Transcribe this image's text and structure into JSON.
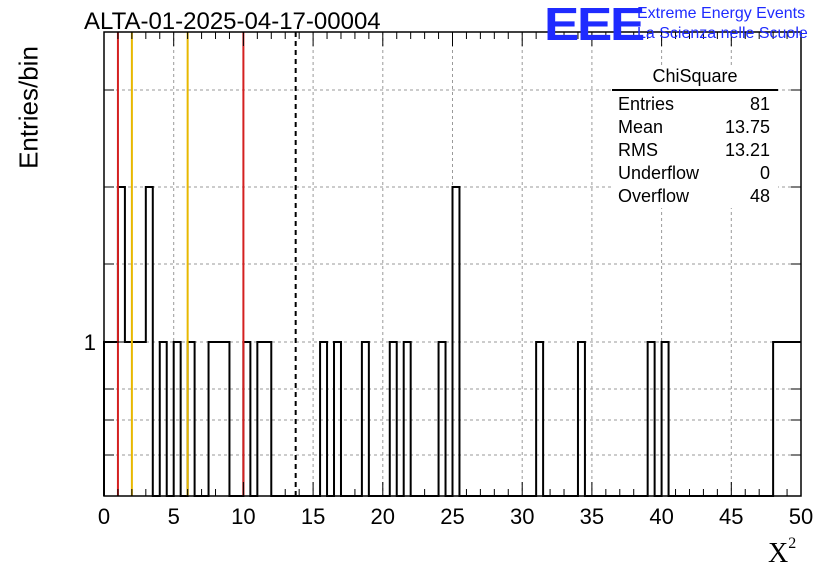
{
  "chart_data": {
    "type": "histogram",
    "title": "ALTA-01-2025-04-17-00004",
    "xlabel": "X",
    "xlabel_superscript": "2",
    "ylabel": "Entries/bin",
    "xlim": [
      0,
      50
    ],
    "x_ticks": [
      "0",
      "5",
      "10",
      "15",
      "20",
      "25",
      "30",
      "35",
      "40",
      "45",
      "50"
    ],
    "y_scale": "log",
    "y_tick_labels": [
      "1"
    ],
    "grid": true,
    "bin_width": 0.5,
    "bins": [
      {
        "x0": 0,
        "x1": 1,
        "count": 1
      },
      {
        "x0": 1,
        "x1": 1.5,
        "count": 2
      },
      {
        "x0": 1.5,
        "x1": 3,
        "count": 1
      },
      {
        "x0": 3,
        "x1": 3.5,
        "count": 2
      },
      {
        "x0": 4,
        "x1": 4.5,
        "count": 1
      },
      {
        "x0": 5,
        "x1": 5.5,
        "count": 1
      },
      {
        "x0": 6,
        "x1": 6.5,
        "count": 1
      },
      {
        "x0": 7.5,
        "x1": 9,
        "count": 1
      },
      {
        "x0": 10,
        "x1": 10.5,
        "count": 1
      },
      {
        "x0": 11,
        "x1": 12,
        "count": 1
      },
      {
        "x0": 15.5,
        "x1": 16,
        "count": 1
      },
      {
        "x0": 16.5,
        "x1": 17,
        "count": 1
      },
      {
        "x0": 18.5,
        "x1": 19,
        "count": 1
      },
      {
        "x0": 20.5,
        "x1": 21,
        "count": 1
      },
      {
        "x0": 21.5,
        "x1": 22,
        "count": 1
      },
      {
        "x0": 24,
        "x1": 24.5,
        "count": 1
      },
      {
        "x0": 25,
        "x1": 25.5,
        "count": 2
      },
      {
        "x0": 31,
        "x1": 31.5,
        "count": 1
      },
      {
        "x0": 34,
        "x1": 34.5,
        "count": 1
      },
      {
        "x0": 39,
        "x1": 39.5,
        "count": 1
      },
      {
        "x0": 40,
        "x1": 40.5,
        "count": 1
      },
      {
        "x0": 48,
        "x1": 50,
        "count": 1
      }
    ],
    "vertical_lines": [
      {
        "x": 1,
        "color": "#d42020",
        "style": "solid"
      },
      {
        "x": 2,
        "color": "#e8b800",
        "style": "solid"
      },
      {
        "x": 6,
        "color": "#e8b800",
        "style": "solid"
      },
      {
        "x": 10,
        "color": "#d42020",
        "style": "solid"
      },
      {
        "x": 13.75,
        "color": "#000000",
        "style": "dashed"
      }
    ],
    "stats_box": {
      "title": "ChiSquare",
      "rows": [
        {
          "label": "Entries",
          "value": "81"
        },
        {
          "label": "Mean",
          "value": "13.75"
        },
        {
          "label": "RMS",
          "value": "13.21"
        },
        {
          "label": "Underflow",
          "value": "0"
        },
        {
          "label": "Overflow",
          "value": "48"
        }
      ]
    }
  },
  "branding": {
    "logo": "EEE",
    "line1": "Extreme Energy Events",
    "line2": "La Scienza nelle Scuole",
    "color": "#1f2bff"
  }
}
